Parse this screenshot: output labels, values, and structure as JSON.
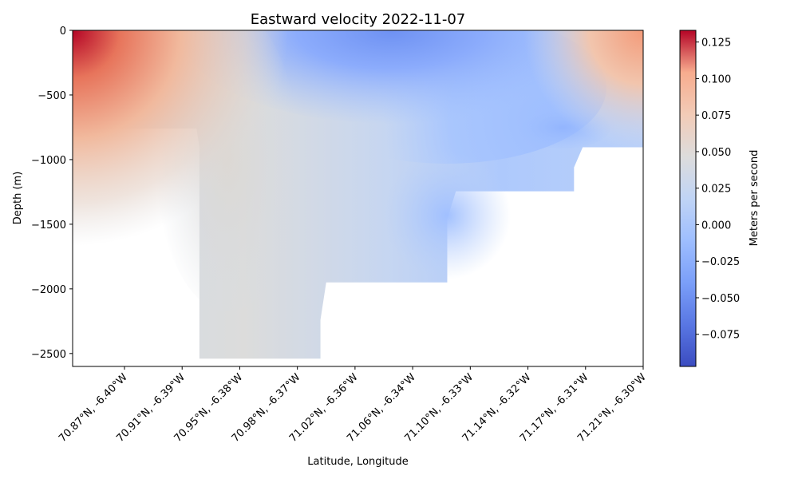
{
  "chart_data": {
    "type": "heatmap",
    "title": "Eastward velocity 2022-11-07",
    "xlabel": "Latitude, Longitude",
    "ylabel": "Depth (m)",
    "colorbar_label": "Meters per second",
    "colormap": "coolwarm",
    "x_tick_labels": [
      "70.87°N, -6.40°W",
      "70.91°N, -6.39°W",
      "70.95°N, -6.38°W",
      "70.98°N, -6.37°W",
      "71.02°N, -6.36°W",
      "71.06°N, -6.34°W",
      "71.10°N, -6.33°W",
      "71.14°N, -6.32°W",
      "71.17°N, -6.31°W",
      "71.21°N, -6.30°W"
    ],
    "x_tick_index": [
      0.9,
      1.9,
      2.9,
      3.9,
      4.9,
      5.9,
      6.9,
      7.9,
      8.9,
      9.9
    ],
    "x_range_index": [
      0,
      9.9
    ],
    "y_ticks": [
      0,
      -500,
      -1000,
      -1500,
      -2000,
      -2500
    ],
    "y_tick_labels": [
      "0",
      "−500",
      "−1000",
      "−1500",
      "−2000",
      "−2500"
    ],
    "ylim": [
      -2600,
      0
    ],
    "colorbar_ticks": [
      0.125,
      0.1,
      0.075,
      0.05,
      0.025,
      0.0,
      -0.025,
      -0.05,
      -0.075
    ],
    "colorbar_tick_labels": [
      "0.125",
      "0.100",
      "0.075",
      "0.050",
      "0.025",
      "0.000",
      "−0.025",
      "−0.050",
      "−0.075"
    ],
    "colorbar_range": [
      -0.097,
      0.133
    ],
    "bathymetry_depth": [
      {
        "x": 0.0,
        "depth": -760
      },
      {
        "x": 2.15,
        "depth": -760
      },
      {
        "x": 2.2,
        "depth": -900
      },
      {
        "x": 2.2,
        "depth": -2540
      },
      {
        "x": 4.3,
        "depth": -2540
      },
      {
        "x": 4.3,
        "depth": -2240
      },
      {
        "x": 4.4,
        "depth": -1950
      },
      {
        "x": 6.5,
        "depth": -1950
      },
      {
        "x": 6.5,
        "depth": -1460
      },
      {
        "x": 6.65,
        "depth": -1245
      },
      {
        "x": 8.7,
        "depth": -1245
      },
      {
        "x": 8.7,
        "depth": -1060
      },
      {
        "x": 8.85,
        "depth": -905
      },
      {
        "x": 9.9,
        "depth": -905
      }
    ],
    "velocity_features": [
      {
        "x": 0.0,
        "depth": 0,
        "value": 0.13
      },
      {
        "x": 0.6,
        "depth": -60,
        "value": 0.09
      },
      {
        "x": 1.3,
        "depth": -200,
        "value": 0.05
      },
      {
        "x": 2.0,
        "depth": -300,
        "value": 0.035
      },
      {
        "x": 0.3,
        "depth": -550,
        "value": -0.008
      },
      {
        "x": 2.8,
        "depth": -600,
        "value": 0.02
      },
      {
        "x": 4.5,
        "depth": -30,
        "value": -0.065
      },
      {
        "x": 6.8,
        "depth": -80,
        "value": -0.05
      },
      {
        "x": 5.8,
        "depth": -300,
        "value": -0.04
      },
      {
        "x": 8.1,
        "depth": -770,
        "value": -0.04
      },
      {
        "x": 6.3,
        "depth": -1350,
        "value": -0.035
      },
      {
        "x": 4.0,
        "depth": -1200,
        "value": -0.008
      },
      {
        "x": 4.3,
        "depth": -2420,
        "value": -0.005
      },
      {
        "x": 9.9,
        "depth": 0,
        "value": 0.07
      },
      {
        "x": 9.3,
        "depth": -120,
        "value": 0.04
      }
    ]
  }
}
